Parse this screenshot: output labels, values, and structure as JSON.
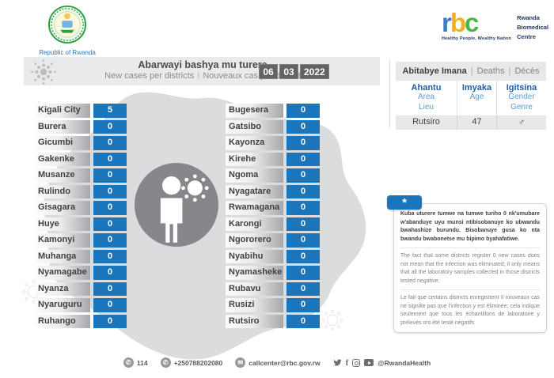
{
  "branding": {
    "gov": {
      "line1": "Republic of Rwanda",
      "line2": "Ministry of Health"
    },
    "rbc": {
      "l1": "r",
      "l2": "b",
      "l3": "c",
      "name1": "Rwanda",
      "name2": "Biomedical",
      "name3": "Centre",
      "tagline": "Healthy People, Wealthy Nation"
    }
  },
  "header": {
    "title_rw": "Abarwayi bashya mu turere",
    "subtitle_en": "New cases per districts",
    "subtitle_sep": "I",
    "subtitle_fr": "Nouveaux cas par district",
    "date": {
      "day": "06",
      "month": "03",
      "year": "2022"
    }
  },
  "deaths_panel": {
    "title_rw": "Abitabye Imana",
    "sep": "|",
    "title_en": "Deaths",
    "title_fr": "Décès",
    "columns": [
      {
        "rw": "Ahantu",
        "sub1": "Area",
        "sub2": "Lieu"
      },
      {
        "rw": "Imyaka",
        "sub1": "Age",
        "sub2": ""
      },
      {
        "rw": "Igitsina",
        "sub1": "Gender",
        "sub2": "Genre"
      }
    ],
    "rows": [
      {
        "place": "Rutsiro",
        "age": "47",
        "gender": "♂"
      }
    ]
  },
  "districts": {
    "left": [
      {
        "name": "Kigali City",
        "value": "5"
      },
      {
        "name": "Burera",
        "value": "0"
      },
      {
        "name": "Gicumbi",
        "value": "0"
      },
      {
        "name": "Gakenke",
        "value": "0"
      },
      {
        "name": "Musanze",
        "value": "0"
      },
      {
        "name": "Rulindo",
        "value": "0"
      },
      {
        "name": "Gisagara",
        "value": "0"
      },
      {
        "name": "Huye",
        "value": "0"
      },
      {
        "name": "Kamonyi",
        "value": "0"
      },
      {
        "name": "Muhanga",
        "value": "0"
      },
      {
        "name": "Nyamagabe",
        "value": "0"
      },
      {
        "name": "Nyanza",
        "value": "0"
      },
      {
        "name": "Nyaruguru",
        "value": "0"
      },
      {
        "name": "Ruhango",
        "value": "0"
      }
    ],
    "mid": [
      {
        "name": "Bugesera",
        "value": "0"
      },
      {
        "name": "Gatsibo",
        "value": "0"
      },
      {
        "name": "Kayonza",
        "value": "0"
      },
      {
        "name": "Kirehe",
        "value": "0"
      },
      {
        "name": "Ngoma",
        "value": "0"
      },
      {
        "name": "Nyagatare",
        "value": "0"
      },
      {
        "name": "Rwamagana",
        "value": "0"
      },
      {
        "name": "Karongi",
        "value": "0"
      },
      {
        "name": "Ngororero",
        "value": "0"
      },
      {
        "name": "Nyabihu",
        "value": "0"
      },
      {
        "name": "Nyamasheke",
        "value": "0"
      },
      {
        "name": "Rubavu",
        "value": "0"
      },
      {
        "name": "Rusizi",
        "value": "0"
      },
      {
        "name": "Rutsiro",
        "value": "0"
      }
    ]
  },
  "chart_data": {
    "type": "table",
    "title": "Abarwayi bashya mu turere / New cases per districts - 06 03 2022",
    "categories": [
      "Kigali City",
      "Burera",
      "Gicumbi",
      "Gakenke",
      "Musanze",
      "Rulindo",
      "Gisagara",
      "Huye",
      "Kamonyi",
      "Muhanga",
      "Nyamagabe",
      "Nyanza",
      "Nyaruguru",
      "Ruhango",
      "Bugesera",
      "Gatsibo",
      "Kayonza",
      "Kirehe",
      "Ngoma",
      "Nyagatare",
      "Rwamagana",
      "Karongi",
      "Ngororero",
      "Nyabihu",
      "Nyamasheke",
      "Rubavu",
      "Rusizi",
      "Rutsiro"
    ],
    "values": [
      5,
      0,
      0,
      0,
      0,
      0,
      0,
      0,
      0,
      0,
      0,
      0,
      0,
      0,
      0,
      0,
      0,
      0,
      0,
      0,
      0,
      0,
      0,
      0,
      0,
      0,
      0,
      0
    ],
    "deaths": [
      {
        "place": "Rutsiro",
        "age": 47,
        "gender": "male"
      }
    ]
  },
  "notes": {
    "marker": "*",
    "rw": "Kuba uturere tumwe na tumwe turiho 0 nk'umubare w'abanduye uyu munsi ntibisobanuye ko ubwandu bwahashize burundu. Bisobanuye gusa ko nta bwandu bwabonetse mu bipimo byahafatiwe.",
    "en": "The fact that some districts register 0 new cases does not mean that the infection was eliminated; it only means that all the laboratory samples collected in those districts tested negative.",
    "fr": "Le fait que certains districts enregistrent 0 nouveaux cas ne signifie pas que l'infection y est éliminée; cela indique seulement que tous les échantillons de laboratoire y prélevés ont été testé négatifs"
  },
  "footer": {
    "phone_short": "114",
    "phone_full": "+250788202080",
    "email": "callcenter@rbc.gov.rw",
    "social_handle": "@RwandaHealth"
  },
  "colors": {
    "accent_blue": "#1b75bb",
    "date_gray": "#616365",
    "band_gray": "#e9eaeb",
    "map_gray": "#dbdcde",
    "circle_gray": "#85878a",
    "text_dark": "#414042",
    "text_gray": "#808285",
    "head_blue_dark": "#1d5fa3",
    "head_blue_light": "#5b9bd5"
  }
}
